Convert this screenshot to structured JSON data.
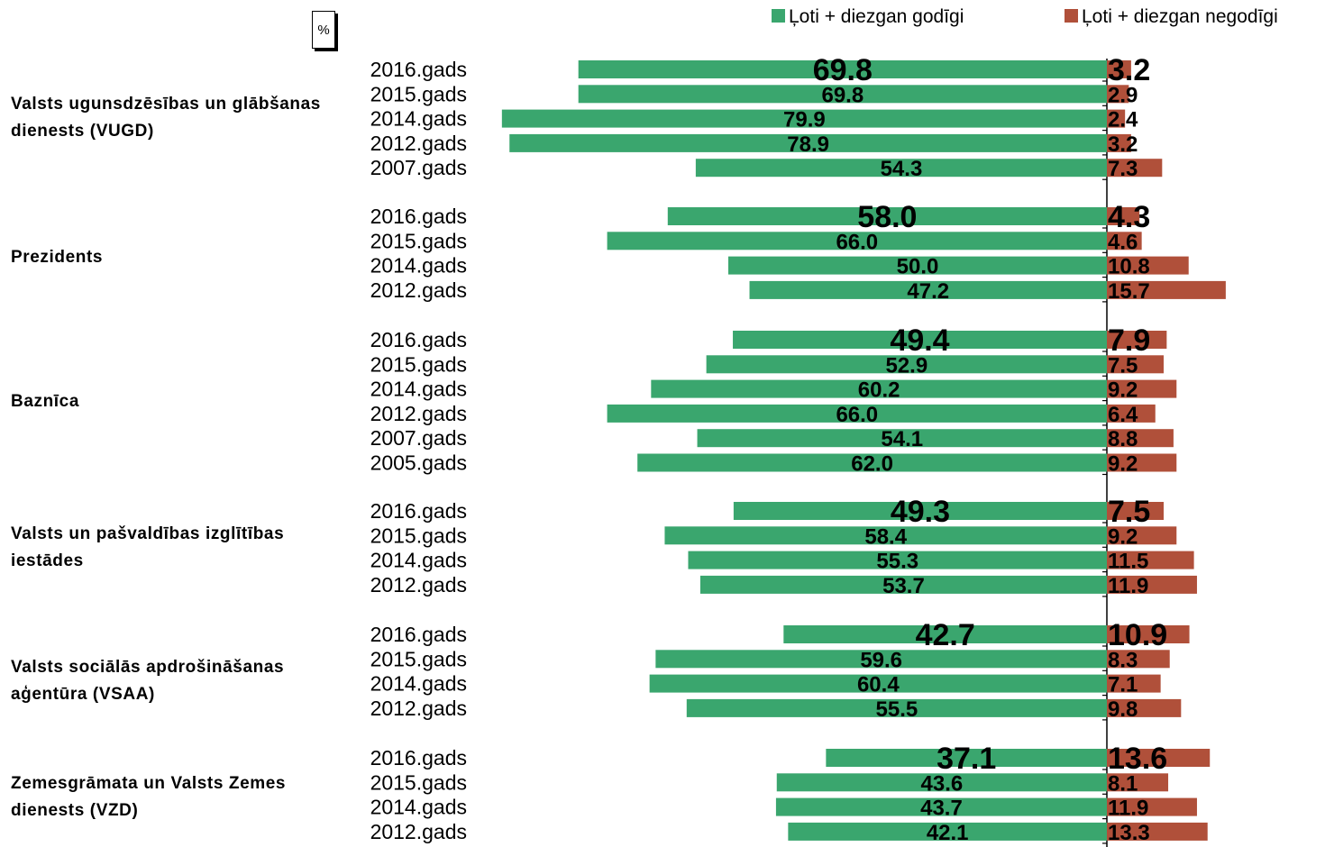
{
  "unit": "%",
  "chart_data": {
    "type": "bar",
    "orientation": "horizontal-diverging",
    "legend": {
      "placement": "top-right"
    },
    "series": [
      {
        "name": "Ļoti + diezgan godīgi",
        "color": "#3aa66e"
      },
      {
        "name": "Ļoti + diezgan negodīgi",
        "color": "#b0503a"
      }
    ],
    "groups": [
      {
        "label": "Valsts ugunsdzēsības un glābšanas dienests (VUGD)",
        "rows": [
          {
            "year": "2016.gads",
            "positive": "69.8",
            "negative": "3.2"
          },
          {
            "year": "2015.gads",
            "positive": "69.8",
            "negative": "2.9"
          },
          {
            "year": "2014.gads",
            "positive": "79.9",
            "negative": "2.4"
          },
          {
            "year": "2012.gads",
            "positive": "78.9",
            "negative": "3.2"
          },
          {
            "year": "2007.gads",
            "positive": "54.3",
            "negative": "7.3"
          }
        ]
      },
      {
        "label": "Prezidents",
        "rows": [
          {
            "year": "2016.gads",
            "positive": "58.0",
            "negative": "4.3"
          },
          {
            "year": "2015.gads",
            "positive": "66.0",
            "negative": "4.6"
          },
          {
            "year": "2014.gads",
            "positive": "50.0",
            "negative": "10.8"
          },
          {
            "year": "2012.gads",
            "positive": "47.2",
            "negative": "15.7"
          }
        ]
      },
      {
        "label": "Baznīca",
        "rows": [
          {
            "year": "2016.gads",
            "positive": "49.4",
            "negative": "7.9"
          },
          {
            "year": "2015.gads",
            "positive": "52.9",
            "negative": "7.5"
          },
          {
            "year": "2014.gads",
            "positive": "60.2",
            "negative": "9.2"
          },
          {
            "year": "2012.gads",
            "positive": "66.0",
            "negative": "6.4"
          },
          {
            "year": "2007.gads",
            "positive": "54.1",
            "negative": "8.8"
          },
          {
            "year": "2005.gads",
            "positive": "62.0",
            "negative": "9.2"
          }
        ]
      },
      {
        "label": "Valsts un pašvaldības izglītības iestādes",
        "rows": [
          {
            "year": "2016.gads",
            "positive": "49.3",
            "negative": "7.5"
          },
          {
            "year": "2015.gads",
            "positive": "58.4",
            "negative": "9.2"
          },
          {
            "year": "2014.gads",
            "positive": "55.3",
            "negative": "11.5"
          },
          {
            "year": "2012.gads",
            "positive": "53.7",
            "negative": "11.9"
          }
        ]
      },
      {
        "label": "Valsts sociālās apdrošināšanas aģentūra (VSAA)",
        "rows": [
          {
            "year": "2016.gads",
            "positive": "42.7",
            "negative": "10.9"
          },
          {
            "year": "2015.gads",
            "positive": "59.6",
            "negative": "8.3"
          },
          {
            "year": "2014.gads",
            "positive": "60.4",
            "negative": "7.1"
          },
          {
            "year": "2012.gads",
            "positive": "55.5",
            "negative": "9.8"
          }
        ]
      },
      {
        "label": "Zemesgrāmata un Valsts Zemes dienests (VZD)",
        "rows": [
          {
            "year": "2016.gads",
            "positive": "37.1",
            "negative": "13.6"
          },
          {
            "year": "2015.gads",
            "positive": "43.6",
            "negative": "8.1"
          },
          {
            "year": "2014.gads",
            "positive": "43.7",
            "negative": "11.9"
          },
          {
            "year": "2012.gads",
            "positive": "42.1",
            "negative": "13.3"
          }
        ]
      }
    ]
  }
}
